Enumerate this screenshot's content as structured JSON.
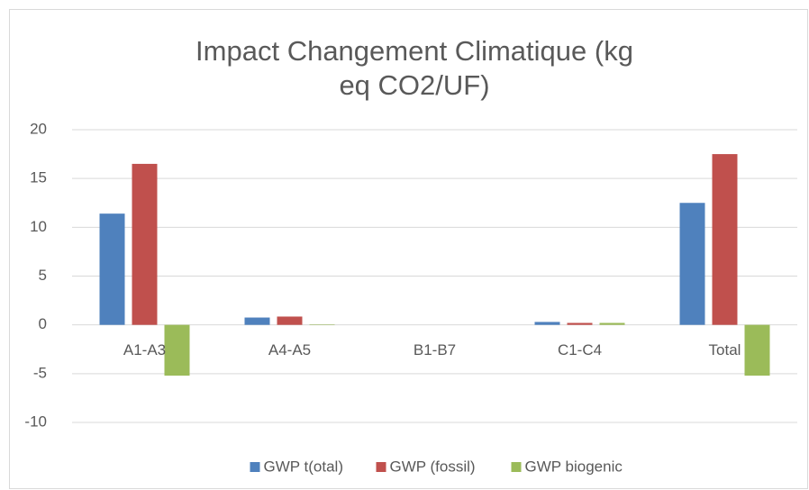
{
  "chart_data": {
    "type": "bar",
    "title": "Impact Changement Climatique (kg eq CO2/UF)",
    "categories": [
      "A1-A3",
      "A4-A5",
      "B1-B7",
      "C1-C4",
      "Total"
    ],
    "series": [
      {
        "name": "GWP t(otal)",
        "color": "#4f81bd",
        "values": [
          11.4,
          0.75,
          0,
          0.3,
          12.5
        ]
      },
      {
        "name": "GWP (fossil)",
        "color": "#c0504d",
        "values": [
          16.5,
          0.85,
          0,
          0.2,
          17.5
        ]
      },
      {
        "name": "GWP biogenic",
        "color": "#9bbb59",
        "values": [
          -5.2,
          0.05,
          0,
          0.2,
          -5.2
        ]
      }
    ],
    "ylim": [
      -10,
      20
    ],
    "yticks": [
      -10,
      -5,
      0,
      5,
      10,
      15,
      20
    ],
    "grid": true,
    "legend": "bottom"
  }
}
